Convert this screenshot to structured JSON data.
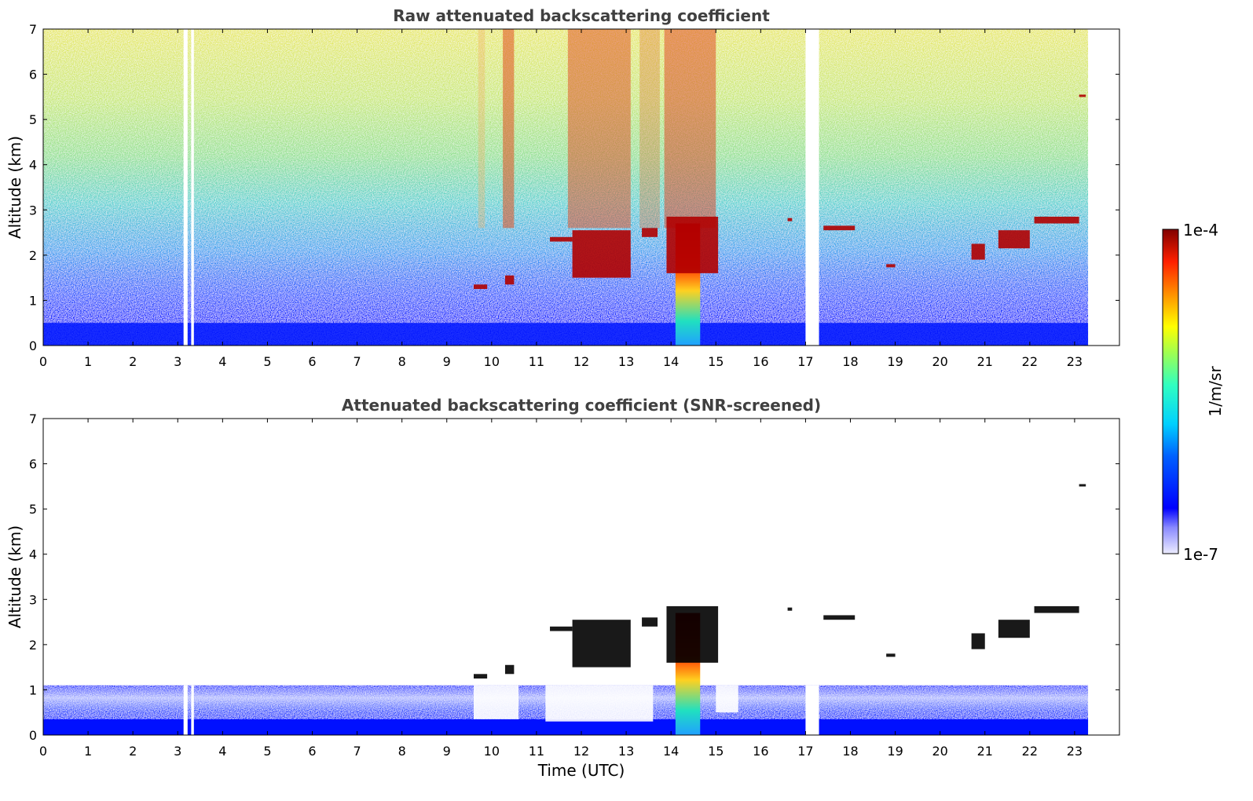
{
  "chart_data": [
    {
      "type": "heatmap",
      "title": "Raw attenuated backscattering coefficient",
      "xlabel": "",
      "ylabel": "Altitude (km)",
      "xlim": [
        0,
        24
      ],
      "ylim": [
        0,
        7
      ],
      "x_ticks": [
        "0",
        "1",
        "2",
        "3",
        "4",
        "5",
        "6",
        "7",
        "8",
        "9",
        "10",
        "11",
        "12",
        "13",
        "14",
        "15",
        "16",
        "17",
        "18",
        "19",
        "20",
        "21",
        "22",
        "23"
      ],
      "y_ticks": [
        "0",
        "1",
        "2",
        "3",
        "4",
        "5",
        "6",
        "7"
      ],
      "data_extent_hours": [
        0,
        23.3
      ],
      "data_gaps_hours": [
        [
          3.13,
          3.22
        ],
        [
          3.3,
          3.36
        ],
        [
          17.0,
          17.3
        ]
      ],
      "surface_layer_top_km": 0.5,
      "precipitation_shaft": {
        "time_range_hours": [
          14.1,
          14.65
        ],
        "top_km": 2.7
      },
      "cloud_features": [
        {
          "time_hours": [
            9.6,
            9.9
          ],
          "altitude_km": [
            1.25,
            1.35
          ]
        },
        {
          "time_hours": [
            10.3,
            10.5
          ],
          "altitude_km": [
            1.35,
            1.55
          ]
        },
        {
          "time_hours": [
            11.3,
            11.8
          ],
          "altitude_km": [
            2.3,
            2.4
          ]
        },
        {
          "time_hours": [
            11.8,
            13.1
          ],
          "altitude_km": [
            1.5,
            2.55
          ]
        },
        {
          "time_hours": [
            13.35,
            13.7
          ],
          "altitude_km": [
            2.4,
            2.6
          ]
        },
        {
          "time_hours": [
            13.9,
            15.05
          ],
          "altitude_km": [
            1.6,
            2.85
          ]
        },
        {
          "time_hours": [
            16.6,
            16.7
          ],
          "altitude_km": [
            2.75,
            2.82
          ]
        },
        {
          "time_hours": [
            17.4,
            18.1
          ],
          "altitude_km": [
            2.55,
            2.65
          ]
        },
        {
          "time_hours": [
            18.8,
            19.0
          ],
          "altitude_km": [
            1.73,
            1.8
          ]
        },
        {
          "time_hours": [
            20.7,
            21.0
          ],
          "altitude_km": [
            1.9,
            2.25
          ]
        },
        {
          "time_hours": [
            21.3,
            22.0
          ],
          "altitude_km": [
            2.15,
            2.55
          ]
        },
        {
          "time_hours": [
            22.1,
            23.1
          ],
          "altitude_km": [
            2.7,
            2.85
          ]
        },
        {
          "time_hours": [
            23.1,
            23.25
          ],
          "altitude_km": [
            5.5,
            5.55
          ]
        }
      ]
    },
    {
      "type": "heatmap",
      "title": "Attenuated backscattering coefficient (SNR-screened)",
      "xlabel": "Time (UTC)",
      "ylabel": "Altitude (km)",
      "xlim": [
        0,
        24
      ],
      "ylim": [
        0,
        7
      ],
      "x_ticks": [
        "0",
        "1",
        "2",
        "3",
        "4",
        "5",
        "6",
        "7",
        "8",
        "9",
        "10",
        "11",
        "12",
        "13",
        "14",
        "15",
        "16",
        "17",
        "18",
        "19",
        "20",
        "21",
        "22",
        "23"
      ],
      "y_ticks": [
        "0",
        "1",
        "2",
        "3",
        "4",
        "5",
        "6",
        "7"
      ],
      "data_extent_hours": [
        0,
        23.3
      ],
      "boundary_layer_top_km": 1.1,
      "precipitation_shaft": {
        "time_range_hours": [
          14.1,
          14.65
        ],
        "top_km": 2.7
      },
      "cloud_features": [
        {
          "time_hours": [
            9.6,
            9.9
          ],
          "altitude_km": [
            1.25,
            1.35
          ]
        },
        {
          "time_hours": [
            10.3,
            10.5
          ],
          "altitude_km": [
            1.35,
            1.55
          ]
        },
        {
          "time_hours": [
            11.3,
            11.8
          ],
          "altitude_km": [
            2.3,
            2.4
          ]
        },
        {
          "time_hours": [
            11.8,
            13.1
          ],
          "altitude_km": [
            1.5,
            2.55
          ]
        },
        {
          "time_hours": [
            13.35,
            13.7
          ],
          "altitude_km": [
            2.4,
            2.6
          ]
        },
        {
          "time_hours": [
            13.9,
            15.05
          ],
          "altitude_km": [
            1.6,
            2.85
          ]
        },
        {
          "time_hours": [
            16.6,
            16.7
          ],
          "altitude_km": [
            2.75,
            2.82
          ]
        },
        {
          "time_hours": [
            17.4,
            18.1
          ],
          "altitude_km": [
            2.55,
            2.65
          ]
        },
        {
          "time_hours": [
            18.8,
            19.0
          ],
          "altitude_km": [
            1.73,
            1.8
          ]
        },
        {
          "time_hours": [
            20.7,
            21.0
          ],
          "altitude_km": [
            1.9,
            2.25
          ]
        },
        {
          "time_hours": [
            21.3,
            22.0
          ],
          "altitude_km": [
            2.15,
            2.55
          ]
        },
        {
          "time_hours": [
            22.1,
            23.1
          ],
          "altitude_km": [
            2.7,
            2.85
          ]
        },
        {
          "time_hours": [
            23.1,
            23.25
          ],
          "altitude_km": [
            5.5,
            5.55
          ]
        }
      ]
    }
  ],
  "colorbar": {
    "label": "1/m/sr",
    "max_label": "1e-4",
    "min_label": "1e-7",
    "range": [
      1e-07,
      0.0001
    ],
    "scale": "log",
    "colormap": "jet"
  },
  "colors": {
    "title": "#404040",
    "axis": "#000000",
    "background": "#ffffff",
    "thick_cloud": "#000000"
  }
}
